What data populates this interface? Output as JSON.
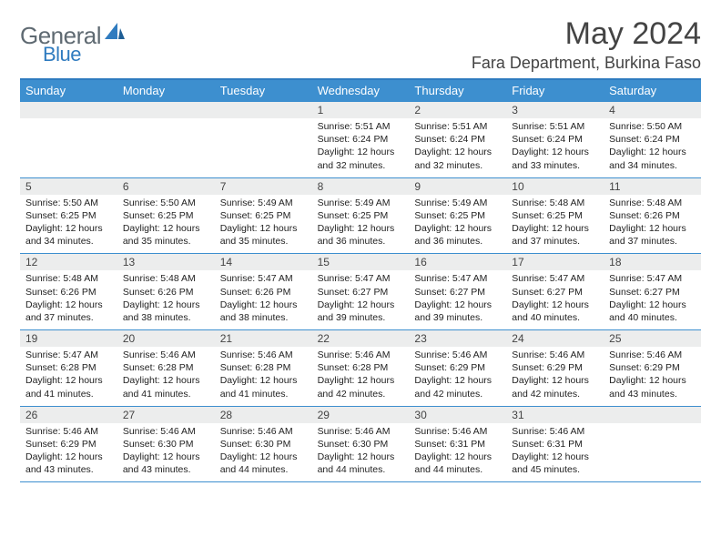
{
  "logo": {
    "word1": "General",
    "word2": "Blue"
  },
  "title": "May 2024",
  "location": "Fara Department, Burkina Faso",
  "colors": {
    "headerBar": "#3d8fcf",
    "ruleLine": "#2f7bbf",
    "dayNumBg": "#eceded",
    "logoGray": "#5f6a72",
    "logoBlue": "#2f7bbf"
  },
  "dayNames": [
    "Sunday",
    "Monday",
    "Tuesday",
    "Wednesday",
    "Thursday",
    "Friday",
    "Saturday"
  ],
  "weeks": [
    [
      {
        "n": "",
        "sr": "",
        "ss": "",
        "dl": ""
      },
      {
        "n": "",
        "sr": "",
        "ss": "",
        "dl": ""
      },
      {
        "n": "",
        "sr": "",
        "ss": "",
        "dl": ""
      },
      {
        "n": "1",
        "sr": "Sunrise: 5:51 AM",
        "ss": "Sunset: 6:24 PM",
        "dl": "Daylight: 12 hours and 32 minutes."
      },
      {
        "n": "2",
        "sr": "Sunrise: 5:51 AM",
        "ss": "Sunset: 6:24 PM",
        "dl": "Daylight: 12 hours and 32 minutes."
      },
      {
        "n": "3",
        "sr": "Sunrise: 5:51 AM",
        "ss": "Sunset: 6:24 PM",
        "dl": "Daylight: 12 hours and 33 minutes."
      },
      {
        "n": "4",
        "sr": "Sunrise: 5:50 AM",
        "ss": "Sunset: 6:24 PM",
        "dl": "Daylight: 12 hours and 34 minutes."
      }
    ],
    [
      {
        "n": "5",
        "sr": "Sunrise: 5:50 AM",
        "ss": "Sunset: 6:25 PM",
        "dl": "Daylight: 12 hours and 34 minutes."
      },
      {
        "n": "6",
        "sr": "Sunrise: 5:50 AM",
        "ss": "Sunset: 6:25 PM",
        "dl": "Daylight: 12 hours and 35 minutes."
      },
      {
        "n": "7",
        "sr": "Sunrise: 5:49 AM",
        "ss": "Sunset: 6:25 PM",
        "dl": "Daylight: 12 hours and 35 minutes."
      },
      {
        "n": "8",
        "sr": "Sunrise: 5:49 AM",
        "ss": "Sunset: 6:25 PM",
        "dl": "Daylight: 12 hours and 36 minutes."
      },
      {
        "n": "9",
        "sr": "Sunrise: 5:49 AM",
        "ss": "Sunset: 6:25 PM",
        "dl": "Daylight: 12 hours and 36 minutes."
      },
      {
        "n": "10",
        "sr": "Sunrise: 5:48 AM",
        "ss": "Sunset: 6:25 PM",
        "dl": "Daylight: 12 hours and 37 minutes."
      },
      {
        "n": "11",
        "sr": "Sunrise: 5:48 AM",
        "ss": "Sunset: 6:26 PM",
        "dl": "Daylight: 12 hours and 37 minutes."
      }
    ],
    [
      {
        "n": "12",
        "sr": "Sunrise: 5:48 AM",
        "ss": "Sunset: 6:26 PM",
        "dl": "Daylight: 12 hours and 37 minutes."
      },
      {
        "n": "13",
        "sr": "Sunrise: 5:48 AM",
        "ss": "Sunset: 6:26 PM",
        "dl": "Daylight: 12 hours and 38 minutes."
      },
      {
        "n": "14",
        "sr": "Sunrise: 5:47 AM",
        "ss": "Sunset: 6:26 PM",
        "dl": "Daylight: 12 hours and 38 minutes."
      },
      {
        "n": "15",
        "sr": "Sunrise: 5:47 AM",
        "ss": "Sunset: 6:27 PM",
        "dl": "Daylight: 12 hours and 39 minutes."
      },
      {
        "n": "16",
        "sr": "Sunrise: 5:47 AM",
        "ss": "Sunset: 6:27 PM",
        "dl": "Daylight: 12 hours and 39 minutes."
      },
      {
        "n": "17",
        "sr": "Sunrise: 5:47 AM",
        "ss": "Sunset: 6:27 PM",
        "dl": "Daylight: 12 hours and 40 minutes."
      },
      {
        "n": "18",
        "sr": "Sunrise: 5:47 AM",
        "ss": "Sunset: 6:27 PM",
        "dl": "Daylight: 12 hours and 40 minutes."
      }
    ],
    [
      {
        "n": "19",
        "sr": "Sunrise: 5:47 AM",
        "ss": "Sunset: 6:28 PM",
        "dl": "Daylight: 12 hours and 41 minutes."
      },
      {
        "n": "20",
        "sr": "Sunrise: 5:46 AM",
        "ss": "Sunset: 6:28 PM",
        "dl": "Daylight: 12 hours and 41 minutes."
      },
      {
        "n": "21",
        "sr": "Sunrise: 5:46 AM",
        "ss": "Sunset: 6:28 PM",
        "dl": "Daylight: 12 hours and 41 minutes."
      },
      {
        "n": "22",
        "sr": "Sunrise: 5:46 AM",
        "ss": "Sunset: 6:28 PM",
        "dl": "Daylight: 12 hours and 42 minutes."
      },
      {
        "n": "23",
        "sr": "Sunrise: 5:46 AM",
        "ss": "Sunset: 6:29 PM",
        "dl": "Daylight: 12 hours and 42 minutes."
      },
      {
        "n": "24",
        "sr": "Sunrise: 5:46 AM",
        "ss": "Sunset: 6:29 PM",
        "dl": "Daylight: 12 hours and 42 minutes."
      },
      {
        "n": "25",
        "sr": "Sunrise: 5:46 AM",
        "ss": "Sunset: 6:29 PM",
        "dl": "Daylight: 12 hours and 43 minutes."
      }
    ],
    [
      {
        "n": "26",
        "sr": "Sunrise: 5:46 AM",
        "ss": "Sunset: 6:29 PM",
        "dl": "Daylight: 12 hours and 43 minutes."
      },
      {
        "n": "27",
        "sr": "Sunrise: 5:46 AM",
        "ss": "Sunset: 6:30 PM",
        "dl": "Daylight: 12 hours and 43 minutes."
      },
      {
        "n": "28",
        "sr": "Sunrise: 5:46 AM",
        "ss": "Sunset: 6:30 PM",
        "dl": "Daylight: 12 hours and 44 minutes."
      },
      {
        "n": "29",
        "sr": "Sunrise: 5:46 AM",
        "ss": "Sunset: 6:30 PM",
        "dl": "Daylight: 12 hours and 44 minutes."
      },
      {
        "n": "30",
        "sr": "Sunrise: 5:46 AM",
        "ss": "Sunset: 6:31 PM",
        "dl": "Daylight: 12 hours and 44 minutes."
      },
      {
        "n": "31",
        "sr": "Sunrise: 5:46 AM",
        "ss": "Sunset: 6:31 PM",
        "dl": "Daylight: 12 hours and 45 minutes."
      },
      {
        "n": "",
        "sr": "",
        "ss": "",
        "dl": ""
      }
    ]
  ]
}
